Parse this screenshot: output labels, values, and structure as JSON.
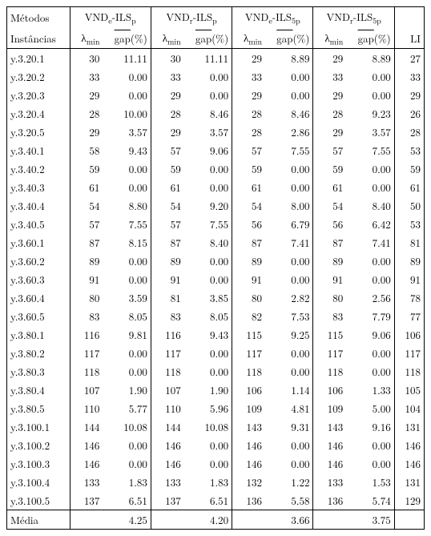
{
  "header": {
    "methods_label": "Métodos",
    "instances_label": "Instâncias",
    "methods": [
      "VND_e-ILS_p",
      "VND_r-ILS_p",
      "VND_e-ILS_5p",
      "VND_r-ILS_5p"
    ],
    "lambda_label": "λ_min",
    "gap_label": "gap(%)",
    "li_label": "LI"
  },
  "rows": [
    {
      "inst": "y.3.20.1",
      "v": [
        [
          "30",
          "11.11"
        ],
        [
          "30",
          "11.11"
        ],
        [
          "29",
          "8.89"
        ],
        [
          "29",
          "8.89"
        ]
      ],
      "li": "27"
    },
    {
      "inst": "y.3.20.2",
      "v": [
        [
          "33",
          "0.00"
        ],
        [
          "33",
          "0.00"
        ],
        [
          "33",
          "0.00"
        ],
        [
          "33",
          "0.00"
        ]
      ],
      "li": "33"
    },
    {
      "inst": "y.3.20.3",
      "v": [
        [
          "29",
          "0.00"
        ],
        [
          "29",
          "0.00"
        ],
        [
          "29",
          "0.00"
        ],
        [
          "29",
          "0.00"
        ]
      ],
      "li": "29"
    },
    {
      "inst": "y.3.20.4",
      "v": [
        [
          "28",
          "10.00"
        ],
        [
          "28",
          "8.46"
        ],
        [
          "28",
          "8.46"
        ],
        [
          "28",
          "9.23"
        ]
      ],
      "li": "26"
    },
    {
      "inst": "y.3.20.5",
      "v": [
        [
          "29",
          "3.57"
        ],
        [
          "29",
          "3.57"
        ],
        [
          "28",
          "2.86"
        ],
        [
          "29",
          "3.57"
        ]
      ],
      "li": "28"
    },
    {
      "inst": "y.3.40.1",
      "v": [
        [
          "58",
          "9.43"
        ],
        [
          "57",
          "9.06"
        ],
        [
          "57",
          "7.55"
        ],
        [
          "57",
          "7.55"
        ]
      ],
      "li": "53"
    },
    {
      "inst": "y.3.40.2",
      "v": [
        [
          "59",
          "0.00"
        ],
        [
          "59",
          "0.00"
        ],
        [
          "59",
          "0.00"
        ],
        [
          "59",
          "0.00"
        ]
      ],
      "li": "59"
    },
    {
      "inst": "y.3.40.3",
      "v": [
        [
          "61",
          "0.00"
        ],
        [
          "61",
          "0.00"
        ],
        [
          "61",
          "0.00"
        ],
        [
          "61",
          "0.00"
        ]
      ],
      "li": "61"
    },
    {
      "inst": "y.3.40.4",
      "v": [
        [
          "54",
          "8.80"
        ],
        [
          "54",
          "9.20"
        ],
        [
          "54",
          "8.00"
        ],
        [
          "54",
          "8.40"
        ]
      ],
      "li": "50"
    },
    {
      "inst": "y.3.40.5",
      "v": [
        [
          "57",
          "7.55"
        ],
        [
          "57",
          "7.55"
        ],
        [
          "56",
          "6.79"
        ],
        [
          "56",
          "6.42"
        ]
      ],
      "li": "53"
    },
    {
      "inst": "y.3.60.1",
      "v": [
        [
          "87",
          "8.15"
        ],
        [
          "87",
          "8.40"
        ],
        [
          "87",
          "7.41"
        ],
        [
          "87",
          "7.41"
        ]
      ],
      "li": "81"
    },
    {
      "inst": "y.3.60.2",
      "v": [
        [
          "89",
          "0.00"
        ],
        [
          "89",
          "0.00"
        ],
        [
          "89",
          "0.00"
        ],
        [
          "89",
          "0.00"
        ]
      ],
      "li": "89"
    },
    {
      "inst": "y.3.60.3",
      "v": [
        [
          "91",
          "0.00"
        ],
        [
          "91",
          "0.00"
        ],
        [
          "91",
          "0.00"
        ],
        [
          "91",
          "0.00"
        ]
      ],
      "li": "91"
    },
    {
      "inst": "y.3.60.4",
      "v": [
        [
          "80",
          "3.59"
        ],
        [
          "81",
          "3.85"
        ],
        [
          "80",
          "2.82"
        ],
        [
          "80",
          "2.56"
        ]
      ],
      "li": "78"
    },
    {
      "inst": "y.3.60.5",
      "v": [
        [
          "83",
          "8.05"
        ],
        [
          "83",
          "8.05"
        ],
        [
          "82",
          "7.53"
        ],
        [
          "83",
          "7.79"
        ]
      ],
      "li": "77"
    },
    {
      "inst": "y.3.80.1",
      "v": [
        [
          "116",
          "9.81"
        ],
        [
          "116",
          "9.43"
        ],
        [
          "115",
          "9.25"
        ],
        [
          "115",
          "9.06"
        ]
      ],
      "li": "106"
    },
    {
      "inst": "y.3.80.2",
      "v": [
        [
          "117",
          "0.00"
        ],
        [
          "117",
          "0.00"
        ],
        [
          "117",
          "0.00"
        ],
        [
          "117",
          "0.00"
        ]
      ],
      "li": "117"
    },
    {
      "inst": "y.3.80.3",
      "v": [
        [
          "118",
          "0.00"
        ],
        [
          "118",
          "0.00"
        ],
        [
          "118",
          "0.00"
        ],
        [
          "118",
          "0.00"
        ]
      ],
      "li": "118"
    },
    {
      "inst": "y.3.80.4",
      "v": [
        [
          "107",
          "1.90"
        ],
        [
          "107",
          "1.90"
        ],
        [
          "106",
          "1.14"
        ],
        [
          "106",
          "1.33"
        ]
      ],
      "li": "105"
    },
    {
      "inst": "y.3.80.5",
      "v": [
        [
          "110",
          "5.77"
        ],
        [
          "110",
          "5.96"
        ],
        [
          "109",
          "4.81"
        ],
        [
          "109",
          "5.00"
        ]
      ],
      "li": "104"
    },
    {
      "inst": "y.3.100.1",
      "v": [
        [
          "144",
          "10.08"
        ],
        [
          "144",
          "10.08"
        ],
        [
          "143",
          "9.31"
        ],
        [
          "143",
          "9.16"
        ]
      ],
      "li": "131"
    },
    {
      "inst": "y.3.100.2",
      "v": [
        [
          "146",
          "0.00"
        ],
        [
          "146",
          "0.00"
        ],
        [
          "146",
          "0.00"
        ],
        [
          "146",
          "0.00"
        ]
      ],
      "li": "146"
    },
    {
      "inst": "y.3.100.3",
      "v": [
        [
          "146",
          "0.00"
        ],
        [
          "146",
          "0.00"
        ],
        [
          "146",
          "0.00"
        ],
        [
          "146",
          "0.00"
        ]
      ],
      "li": "146"
    },
    {
      "inst": "y.3.100.4",
      "v": [
        [
          "133",
          "1.83"
        ],
        [
          "133",
          "1.83"
        ],
        [
          "132",
          "1.22"
        ],
        [
          "133",
          "1.53"
        ]
      ],
      "li": "131"
    },
    {
      "inst": "y.3.100.5",
      "v": [
        [
          "137",
          "6.51"
        ],
        [
          "137",
          "6.51"
        ],
        [
          "136",
          "5.58"
        ],
        [
          "136",
          "5.74"
        ]
      ],
      "li": "129"
    }
  ],
  "footer": {
    "label": "Média",
    "gaps": [
      "4.25",
      "4.20",
      "3.66",
      "3.75"
    ]
  },
  "style": {
    "text_color": "#000000",
    "background_color": "#ffffff",
    "border_color": "#000000",
    "font_size_pt": 10,
    "header_font_size_pt": 10
  }
}
